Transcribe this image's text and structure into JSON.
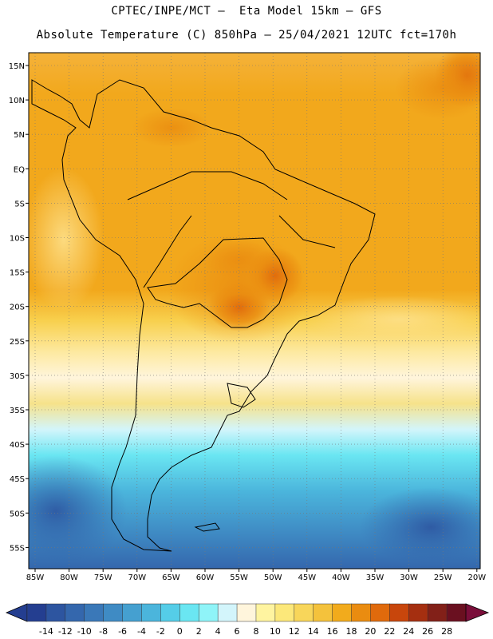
{
  "header": {
    "title_line1": "CPTEC/INPE/MCT –  Eta Model 15km – GFS",
    "title_line2": "Absolute Temperature (C) 850hPa – 25/04/2021 12UTC fct=170h"
  },
  "map": {
    "lat_labels": [
      "15N",
      "10N",
      "5N",
      "EQ",
      "5S",
      "10S",
      "15S",
      "20S",
      "25S",
      "30S",
      "35S",
      "40S",
      "45S",
      "50S",
      "55S"
    ],
    "lon_labels": [
      "85W",
      "80W",
      "75W",
      "70W",
      "65W",
      "60W",
      "55W",
      "50W",
      "45W",
      "40W",
      "35W",
      "30W",
      "25W",
      "20W"
    ],
    "field": "temperature_850hPa",
    "region": "South America"
  },
  "colorbar": {
    "levels": [
      "-14",
      "-12",
      "-10",
      "-8",
      "-6",
      "-4",
      "-2",
      "0",
      "2",
      "4",
      "6",
      "8",
      "10",
      "12",
      "14",
      "16",
      "18",
      "20",
      "22",
      "24",
      "26",
      "28"
    ],
    "colors": [
      "#243e90",
      "#2d55a0",
      "#3467ad",
      "#3a78b8",
      "#3f8bc4",
      "#45a0d0",
      "#4bb5dc",
      "#55cde8",
      "#6ae6f2",
      "#8ff4f8",
      "#d3f5fb",
      "#fff5dc",
      "#fff4a0",
      "#fce87a",
      "#f8d65a",
      "#f4c23c",
      "#f2ab1c",
      "#ea8c10",
      "#e06a0c",
      "#c8460c",
      "#a52f10",
      "#822018",
      "#6a1020"
    ],
    "arrow_left_color": "#243e90",
    "arrow_right_color": "#7a0e3a"
  }
}
